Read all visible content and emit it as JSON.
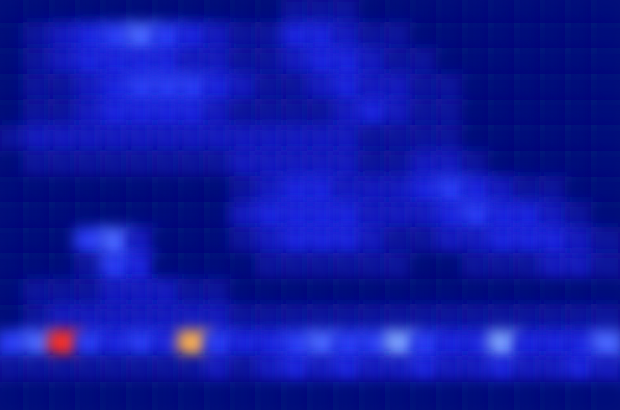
{
  "chart_data": {
    "type": "heatmap",
    "tick_labels": false,
    "cells": [
      [
        0,
        0,
        0,
        0,
        0,
        0,
        0,
        0,
        0,
        0,
        0,
        1,
        1,
        1,
        0,
        0,
        0,
        0,
        0,
        0,
        0,
        0,
        0,
        0
      ],
      [
        0,
        1,
        2,
        3,
        4,
        5,
        4,
        3,
        2,
        1,
        1,
        3,
        3,
        2,
        1,
        1,
        0,
        0,
        0,
        0,
        0,
        0,
        0,
        0
      ],
      [
        0,
        1,
        2,
        3,
        3,
        3,
        3,
        2,
        2,
        1,
        1,
        2,
        3,
        3,
        2,
        1,
        1,
        0,
        0,
        0,
        0,
        0,
        0,
        0
      ],
      [
        0,
        1,
        1,
        2,
        3,
        4,
        4,
        4,
        3,
        2,
        1,
        1,
        2,
        3,
        2,
        2,
        1,
        1,
        0,
        0,
        0,
        0,
        0,
        0
      ],
      [
        0,
        1,
        1,
        2,
        3,
        3,
        3,
        3,
        2,
        1,
        1,
        1,
        1,
        2,
        3,
        2,
        1,
        1,
        0,
        0,
        0,
        0,
        0,
        0
      ],
      [
        1,
        2,
        2,
        2,
        2,
        2,
        2,
        2,
        2,
        2,
        2,
        2,
        2,
        2,
        1,
        1,
        1,
        1,
        0,
        0,
        0,
        0,
        0,
        0
      ],
      [
        0,
        1,
        1,
        1,
        1,
        1,
        1,
        1,
        1,
        2,
        2,
        2,
        2,
        2,
        1,
        1,
        2,
        2,
        1,
        0,
        0,
        0,
        0,
        0
      ],
      [
        0,
        0,
        0,
        0,
        0,
        0,
        0,
        0,
        0,
        1,
        2,
        3,
        3,
        2,
        2,
        2,
        3,
        4,
        3,
        2,
        1,
        1,
        0,
        0
      ],
      [
        0,
        0,
        0,
        0,
        0,
        0,
        0,
        0,
        0,
        2,
        3,
        3,
        3,
        3,
        2,
        2,
        2,
        3,
        4,
        3,
        3,
        2,
        1,
        0
      ],
      [
        0,
        0,
        0,
        4,
        5,
        2,
        0,
        0,
        0,
        1,
        2,
        3,
        3,
        3,
        2,
        1,
        1,
        2,
        2,
        3,
        3,
        3,
        2,
        1
      ],
      [
        0,
        0,
        0,
        1,
        4,
        3,
        0,
        0,
        0,
        0,
        1,
        1,
        1,
        1,
        1,
        1,
        0,
        0,
        1,
        1,
        1,
        2,
        2,
        1
      ],
      [
        0,
        1,
        1,
        1,
        2,
        2,
        2,
        1,
        1,
        0,
        0,
        0,
        0,
        0,
        0,
        0,
        0,
        0,
        0,
        0,
        0,
        0,
        0,
        0
      ],
      [
        0,
        1,
        2,
        2,
        2,
        2,
        2,
        2,
        2,
        1,
        1,
        1,
        1,
        1,
        1,
        1,
        1,
        1,
        1,
        1,
        1,
        1,
        1,
        1
      ],
      [
        4,
        5,
        9,
        4,
        3,
        4,
        3,
        8,
        4,
        3,
        3,
        4,
        5,
        4,
        4,
        6,
        4,
        3,
        3,
        6,
        3,
        3,
        3,
        5
      ],
      [
        1,
        1,
        1,
        1,
        1,
        1,
        1,
        1,
        2,
        1,
        2,
        3,
        2,
        3,
        2,
        2,
        3,
        2,
        2,
        3,
        2,
        2,
        3,
        2
      ],
      [
        0,
        0,
        0,
        0,
        0,
        0,
        0,
        0,
        0,
        0,
        0,
        0,
        0,
        0,
        0,
        0,
        0,
        0,
        0,
        0,
        0,
        0,
        0,
        0
      ]
    ]
  }
}
